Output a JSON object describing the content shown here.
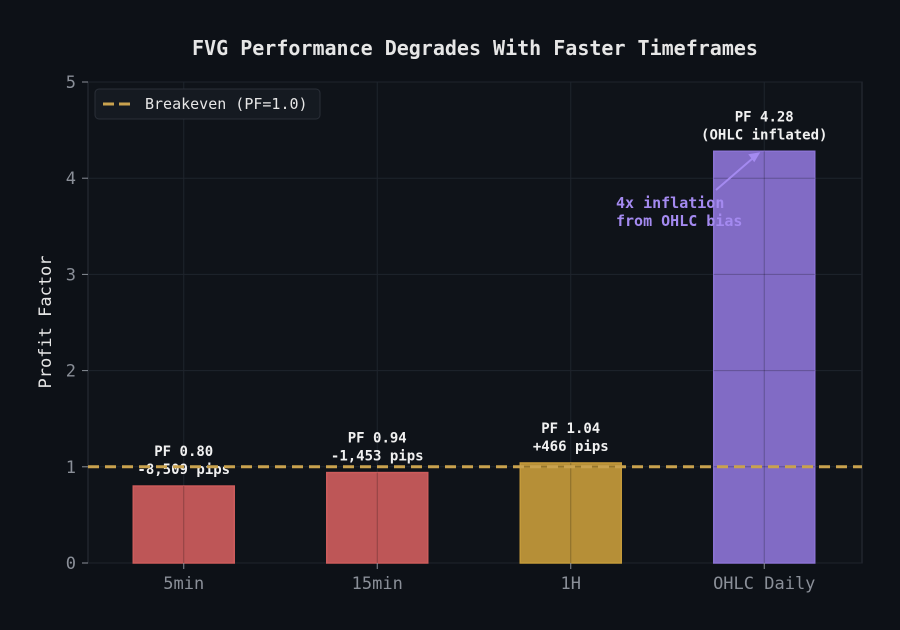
{
  "chart_data": {
    "type": "bar",
    "title": "FVG Performance Degrades With Faster Timeframes",
    "xlabel": "",
    "ylabel": "Profit Factor",
    "ylim": [
      0,
      5
    ],
    "yticks": [
      "0",
      "1",
      "2",
      "3",
      "4",
      "5"
    ],
    "grid": true,
    "categories": [
      "5min",
      "15min",
      "1H",
      "OHLC Daily"
    ],
    "values": [
      0.8,
      0.94,
      1.04,
      4.28
    ],
    "bar_colors": [
      "#cd5c5c",
      "#cd5c5c",
      "#c49a3a",
      "#8b73d4"
    ],
    "data_labels": [
      [
        "PF 0.80",
        "-8,509 pips"
      ],
      [
        "PF 0.94",
        "-1,453 pips"
      ],
      [
        "PF 1.04",
        "+466 pips"
      ],
      [
        "PF 4.28",
        "(OHLC inflated)"
      ]
    ],
    "reference_line": {
      "y": 1.0,
      "label": "Breakeven (PF=1.0)",
      "color": "#c9a24e",
      "style": "dashed"
    },
    "legend_position": "top-left",
    "annotation": {
      "lines": [
        "4x inflation",
        "from OHLC bias"
      ],
      "color": "#a48af0",
      "arrow_to_category": "OHLC Daily"
    }
  }
}
